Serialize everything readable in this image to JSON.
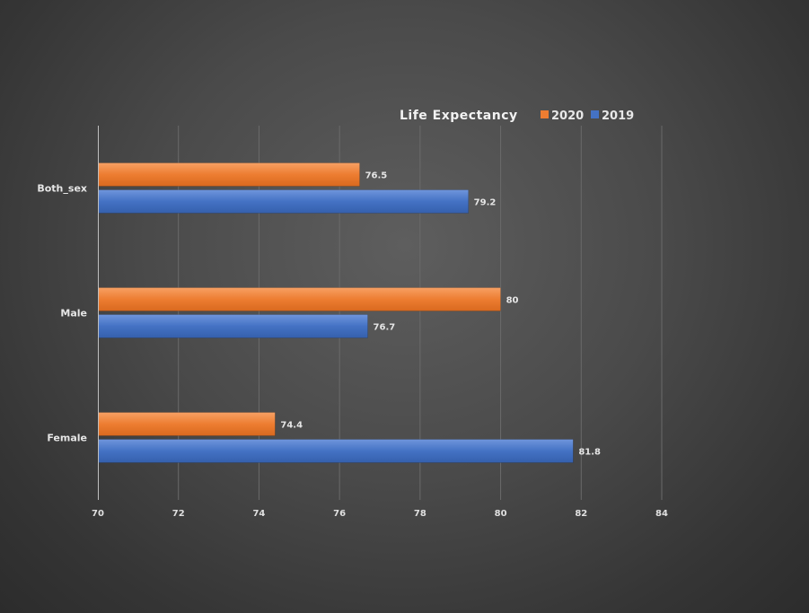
{
  "chart_data": {
    "type": "bar",
    "orientation": "horizontal",
    "title": "Life Expectancy",
    "categories": [
      "Both_sex",
      "Male",
      "Female"
    ],
    "series": [
      {
        "name": "2020",
        "color": "#ed7d31",
        "values": [
          76.5,
          80,
          74.4
        ],
        "labels": [
          "76.5",
          "80",
          "74.4"
        ]
      },
      {
        "name": "2019",
        "color": "#4472c4",
        "values": [
          79.2,
          76.7,
          81.8
        ],
        "labels": [
          "79.2",
          "76.7",
          "81.8"
        ]
      }
    ],
    "xlim": [
      70,
      84
    ],
    "xticks": [
      "70",
      "72",
      "74",
      "76",
      "78",
      "80",
      "82",
      "84"
    ],
    "grid": "vertical",
    "legend": "top"
  }
}
